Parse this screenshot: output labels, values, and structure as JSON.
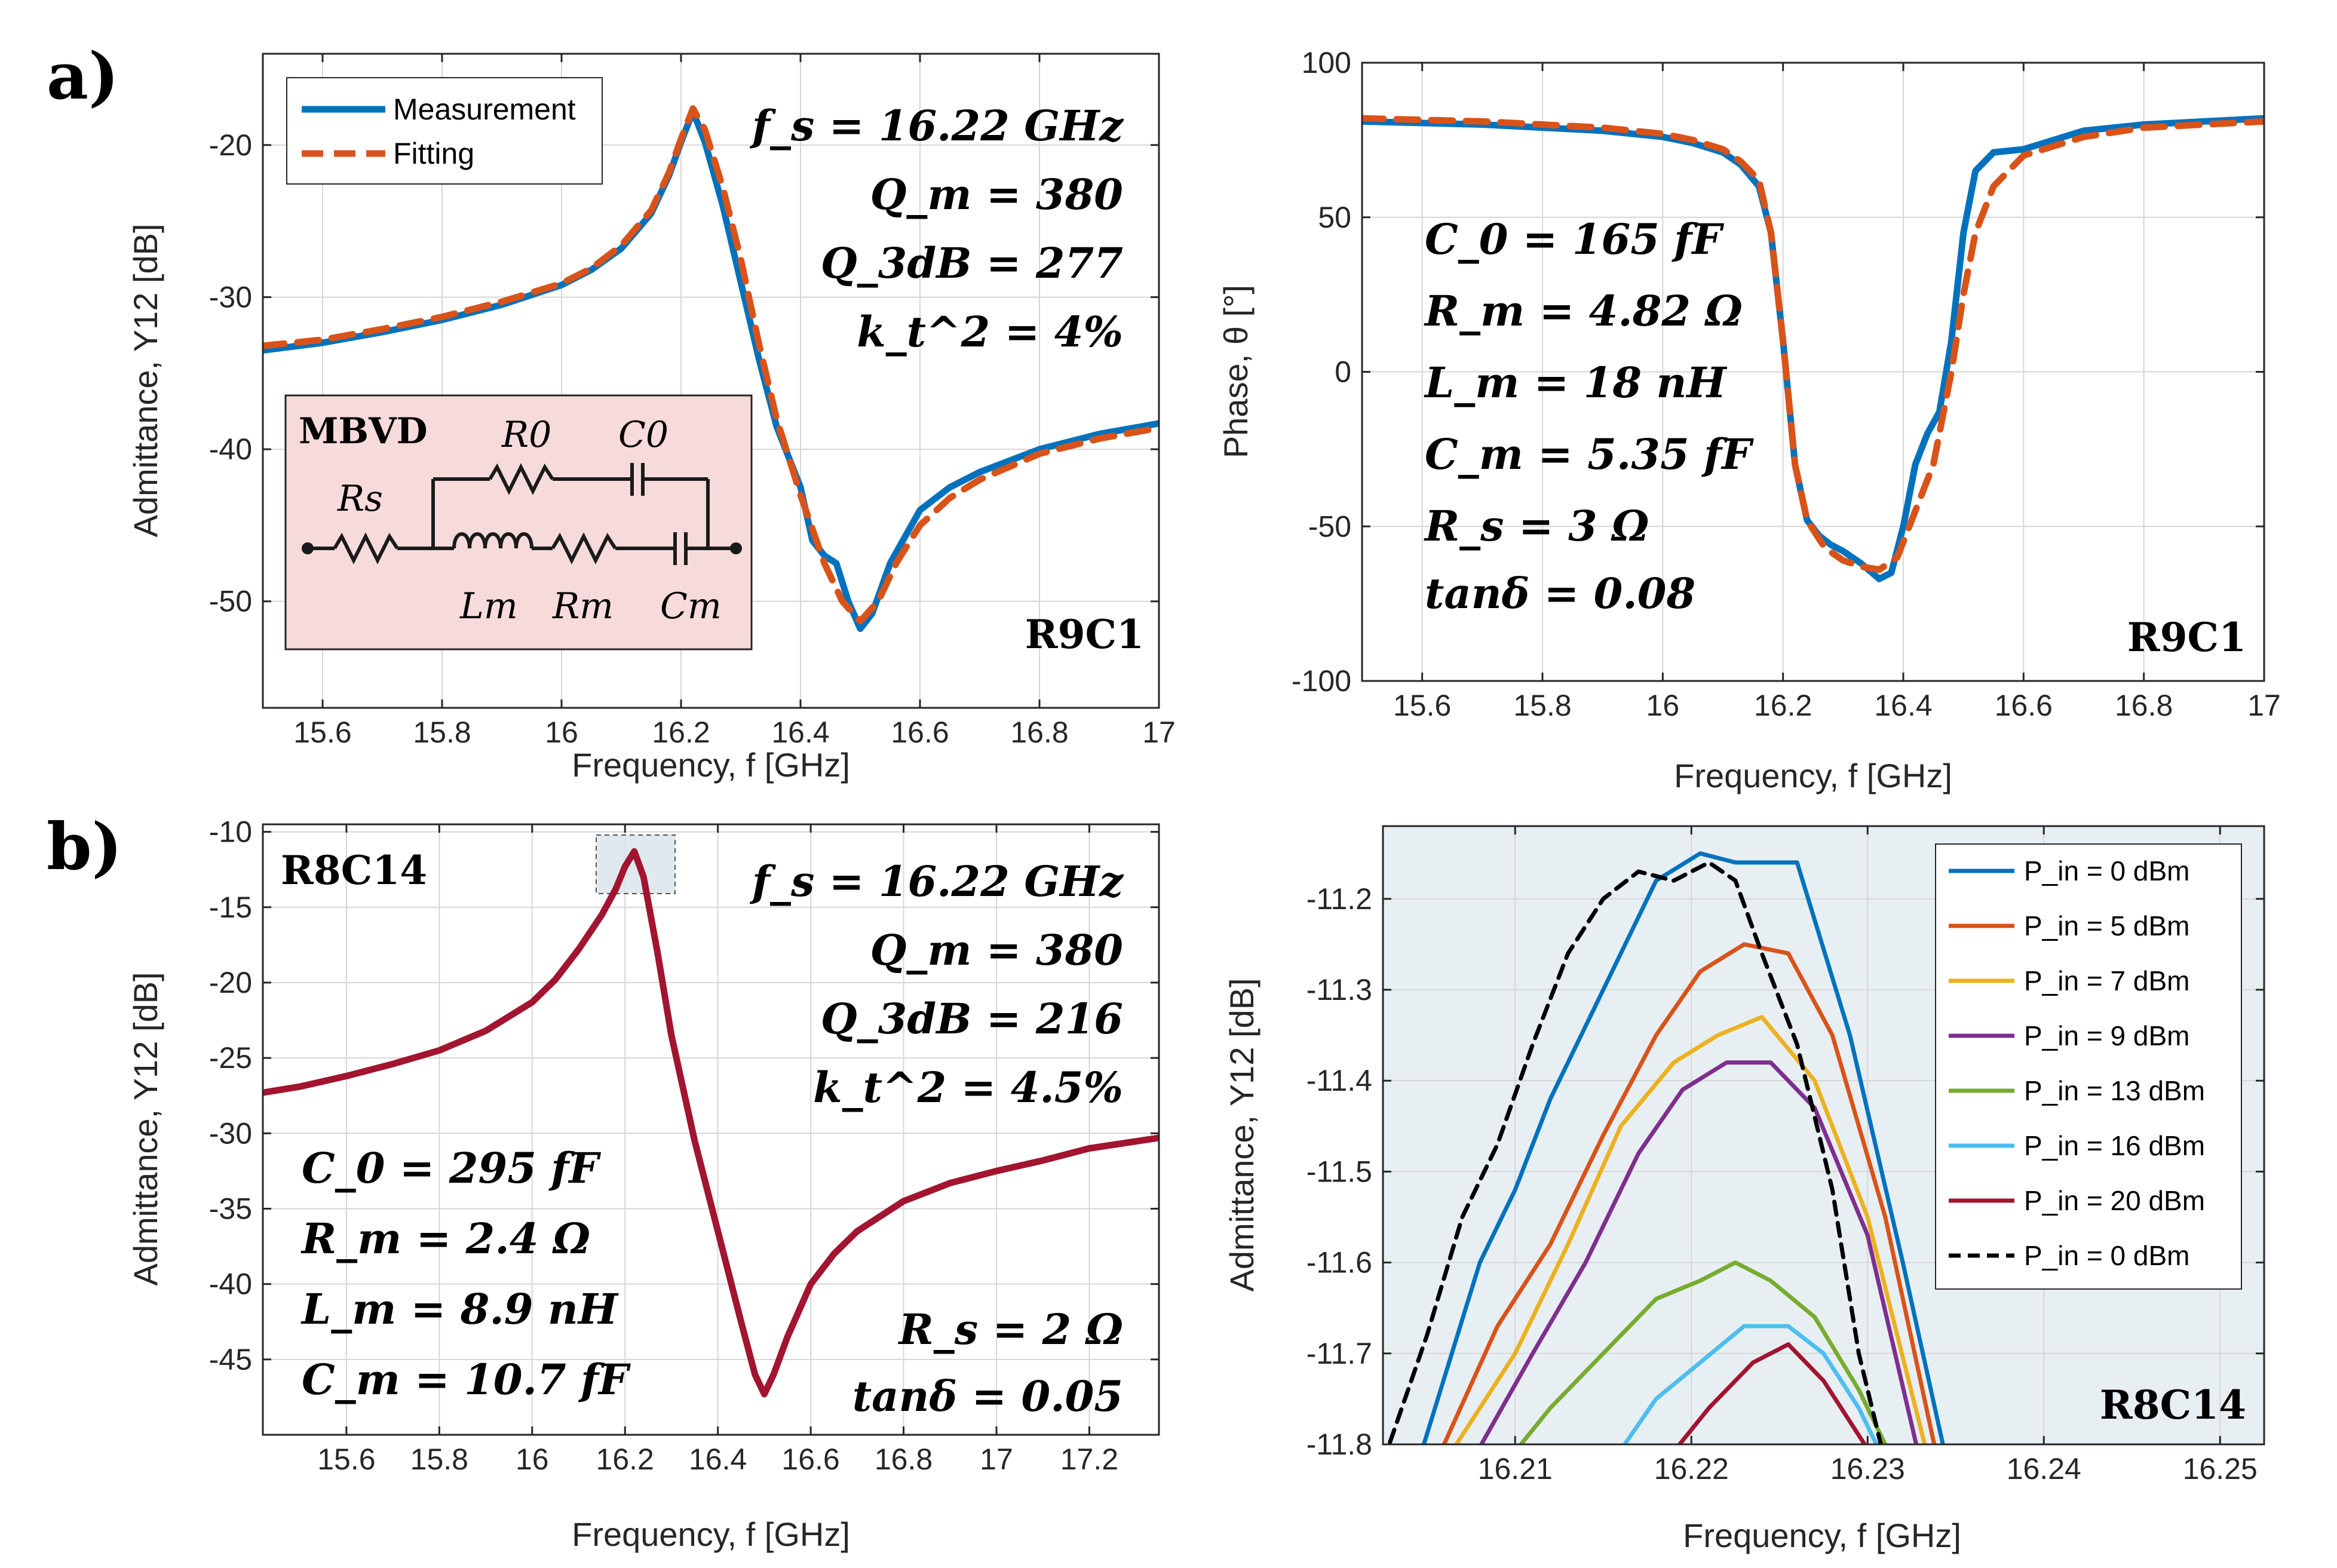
{
  "panels": {
    "a": "a)",
    "b": "b)"
  },
  "chart_data": [
    {
      "id": "a-left",
      "type": "line",
      "xlabel": "Frequency, f [GHz]",
      "ylabel": "Admittance, Y12 [dB]",
      "xlim": [
        15.5,
        17
      ],
      "ylim": [
        -57,
        -14
      ],
      "xticks": [
        15.6,
        15.8,
        16,
        16.2,
        16.4,
        16.6,
        16.8,
        17
      ],
      "yticks": [
        -20,
        -30,
        -40,
        -50
      ],
      "grid": true,
      "legend_position": "top-left",
      "series": [
        {
          "name": "Measurement",
          "color": "#0072BD",
          "dash": "solid",
          "x": [
            15.5,
            15.6,
            15.7,
            15.8,
            15.9,
            16.0,
            16.05,
            16.1,
            16.15,
            16.18,
            16.2,
            16.22,
            16.24,
            16.27,
            16.3,
            16.33,
            16.36,
            16.4,
            16.42,
            16.44,
            16.46,
            16.48,
            16.5,
            16.52,
            16.55,
            16.6,
            16.65,
            16.7,
            16.8,
            16.9,
            17.0
          ],
          "y": [
            -33.5,
            -33.0,
            -32.3,
            -31.5,
            -30.5,
            -29.2,
            -28.2,
            -26.8,
            -24.5,
            -22.0,
            -19.8,
            -17.8,
            -19.8,
            -24.0,
            -29.0,
            -34.0,
            -38.5,
            -42.5,
            -46.0,
            -47.0,
            -47.5,
            -50.0,
            -51.8,
            -50.8,
            -47.5,
            -44.0,
            -42.5,
            -41.5,
            -40.0,
            -39.0,
            -38.3
          ]
        },
        {
          "name": "Fitting",
          "color": "#D95319",
          "dash": "dashed",
          "x": [
            15.5,
            15.6,
            15.7,
            15.8,
            15.9,
            16.0,
            16.05,
            16.1,
            16.15,
            16.18,
            16.2,
            16.22,
            16.24,
            16.27,
            16.3,
            16.33,
            16.36,
            16.4,
            16.44,
            16.47,
            16.5,
            16.53,
            16.56,
            16.6,
            16.65,
            16.7,
            16.8,
            16.9,
            17.0
          ],
          "y": [
            -33.2,
            -32.8,
            -32.1,
            -31.3,
            -30.3,
            -29.1,
            -28.1,
            -26.6,
            -24.3,
            -21.8,
            -19.6,
            -17.6,
            -19.0,
            -22.8,
            -27.5,
            -33.0,
            -38.0,
            -43.0,
            -47.5,
            -50.0,
            -51.3,
            -50.0,
            -47.5,
            -45.0,
            -43.2,
            -42.0,
            -40.3,
            -39.3,
            -38.6
          ]
        }
      ],
      "annotations": {
        "params": [
          "f_s = 16.22 GHz",
          "Q_m = 380",
          "Q_3dB = 277",
          "k_t^2 = 4%"
        ],
        "tag": "R9C1",
        "inset": {
          "title": "MBVD",
          "labels": [
            "R0",
            "C0",
            "Rs",
            "Lm",
            "Rm",
            "Cm"
          ]
        }
      }
    },
    {
      "id": "a-right",
      "type": "line",
      "xlabel": "Frequency, f [GHz]",
      "ylabel": "Phase, θ [°]",
      "xlim": [
        15.5,
        17
      ],
      "ylim": [
        -100,
        100
      ],
      "xticks": [
        15.6,
        15.8,
        16,
        16.2,
        16.4,
        16.6,
        16.8,
        17
      ],
      "yticks": [
        100,
        50,
        0,
        -50,
        -100
      ],
      "grid": true,
      "series": [
        {
          "name": "Measurement",
          "color": "#0072BD",
          "dash": "solid",
          "x": [
            15.5,
            15.7,
            15.9,
            16.0,
            16.05,
            16.1,
            16.13,
            16.16,
            16.18,
            16.2,
            16.22,
            16.24,
            16.26,
            16.28,
            16.3,
            16.33,
            16.36,
            16.38,
            16.4,
            16.42,
            16.44,
            16.46,
            16.48,
            16.5,
            16.52,
            16.55,
            16.6,
            16.7,
            16.8,
            17.0
          ],
          "y": [
            81,
            80,
            78,
            76,
            74,
            71,
            67,
            60,
            45,
            10,
            -30,
            -48,
            -53,
            -56,
            -58,
            -62,
            -67,
            -65,
            -50,
            -30,
            -20,
            -13,
            10,
            45,
            65,
            71,
            72,
            78,
            80,
            82
          ]
        },
        {
          "name": "Fitting",
          "color": "#D95319",
          "dash": "dashed",
          "x": [
            15.5,
            15.7,
            15.9,
            16.0,
            16.05,
            16.1,
            16.13,
            16.16,
            16.18,
            16.2,
            16.22,
            16.24,
            16.27,
            16.3,
            16.33,
            16.36,
            16.39,
            16.42,
            16.45,
            16.48,
            16.5,
            16.52,
            16.55,
            16.6,
            16.7,
            16.8,
            17.0
          ],
          "y": [
            82,
            81,
            79,
            77,
            75,
            72,
            68,
            62,
            45,
            10,
            -30,
            -48,
            -57,
            -61,
            -63,
            -64,
            -60,
            -45,
            -30,
            0,
            25,
            45,
            60,
            70,
            76,
            79,
            81
          ]
        }
      ],
      "annotations": {
        "params": [
          "C_0 = 165 fF",
          "R_m = 4.82 Ω",
          "L_m = 18 nH",
          "C_m = 5.35 fF",
          "R_s = 3 Ω",
          "tanδ = 0.08"
        ],
        "tag": "R9C1"
      }
    },
    {
      "id": "b-left",
      "type": "line",
      "xlabel": "Frequency, f [GHz]",
      "ylabel": "Admittance, Y12 [dB]",
      "xlim": [
        15.42,
        17.35
      ],
      "ylim": [
        -50,
        -9.5
      ],
      "xticks": [
        15.6,
        15.8,
        16,
        16.2,
        16.4,
        16.6,
        16.8,
        17,
        17.2
      ],
      "yticks": [
        -10,
        -15,
        -20,
        -25,
        -30,
        -35,
        -40,
        -45
      ],
      "grid": true,
      "series": [
        {
          "name": "",
          "color": "#A2142F",
          "dash": "solid",
          "x": [
            15.42,
            15.5,
            15.6,
            15.7,
            15.8,
            15.9,
            16.0,
            16.05,
            16.1,
            16.15,
            16.18,
            16.2,
            16.22,
            16.24,
            16.27,
            16.3,
            16.35,
            16.4,
            16.45,
            16.48,
            16.5,
            16.52,
            16.55,
            16.6,
            16.65,
            16.7,
            16.8,
            16.9,
            17.0,
            17.1,
            17.2,
            17.35
          ],
          "y": [
            -27.3,
            -26.9,
            -26.2,
            -25.4,
            -24.5,
            -23.2,
            -21.3,
            -19.8,
            -17.8,
            -15.5,
            -13.8,
            -12.3,
            -11.3,
            -13.0,
            -18.0,
            -23.5,
            -30.5,
            -36.5,
            -42.5,
            -46.0,
            -47.3,
            -46.0,
            -43.5,
            -40.0,
            -38.0,
            -36.5,
            -34.5,
            -33.3,
            -32.5,
            -31.8,
            -31.0,
            -30.3
          ]
        }
      ],
      "annotations": {
        "params": [
          "f_s = 16.22 GHz",
          "Q_m = 380",
          "Q_3dB = 216",
          "k_t^2 = 4.5%",
          "C_0 = 295 fF",
          "R_m = 2.4 Ω",
          "L_m = 8.9 nH",
          "C_m = 10.7 fF",
          "R_s = 2 Ω",
          "tanδ = 0.05"
        ],
        "tag": "R8C14"
      }
    },
    {
      "id": "b-right",
      "type": "line",
      "xlabel": "Frequency, f [GHz]",
      "ylabel": "Admittance, Y12 [dB]",
      "xlim": [
        16.2025,
        16.2525
      ],
      "ylim": [
        -11.8,
        -11.12
      ],
      "xticks": [
        16.21,
        16.22,
        16.23,
        16.24,
        16.25
      ],
      "yticks": [
        -11.2,
        -11.3,
        -11.4,
        -11.5,
        -11.6,
        -11.7,
        -11.8
      ],
      "grid": true,
      "legend_position": "top-right",
      "series": [
        {
          "name": "P_in = 0 dBm",
          "color": "#0072BD",
          "dash": "solid",
          "x": [
            16.2045,
            16.208,
            16.21,
            16.212,
            16.215,
            16.218,
            16.2205,
            16.2225,
            16.226,
            16.229,
            16.232,
            16.2345
          ],
          "y": [
            -11.82,
            -11.6,
            -11.52,
            -11.42,
            -11.3,
            -11.18,
            -11.15,
            -11.16,
            -11.16,
            -11.35,
            -11.6,
            -11.82
          ]
        },
        {
          "name": "P_in = 5 dBm",
          "color": "#D95319",
          "dash": "solid",
          "x": [
            16.2055,
            16.209,
            16.212,
            16.215,
            16.218,
            16.2205,
            16.223,
            16.2255,
            16.228,
            16.231,
            16.234
          ],
          "y": [
            -11.82,
            -11.67,
            -11.58,
            -11.46,
            -11.35,
            -11.28,
            -11.25,
            -11.26,
            -11.35,
            -11.55,
            -11.82
          ]
        },
        {
          "name": "P_in = 7 dBm",
          "color": "#EDB120",
          "dash": "solid",
          "x": [
            16.206,
            16.21,
            16.213,
            16.216,
            16.219,
            16.2215,
            16.224,
            16.227,
            16.23,
            16.2335
          ],
          "y": [
            -11.82,
            -11.7,
            -11.58,
            -11.45,
            -11.38,
            -11.35,
            -11.33,
            -11.4,
            -11.55,
            -11.82
          ]
        },
        {
          "name": "P_in = 9 dBm",
          "color": "#7E2F8E",
          "dash": "solid",
          "x": [
            16.2075,
            16.211,
            16.214,
            16.217,
            16.2195,
            16.222,
            16.2245,
            16.227,
            16.23,
            16.233
          ],
          "y": [
            -11.82,
            -11.7,
            -11.6,
            -11.48,
            -11.41,
            -11.38,
            -11.38,
            -11.43,
            -11.57,
            -11.82
          ]
        },
        {
          "name": "P_in = 13 dBm",
          "color": "#77AC30",
          "dash": "solid",
          "x": [
            16.2095,
            16.212,
            16.215,
            16.218,
            16.2205,
            16.2225,
            16.2245,
            16.227,
            16.2295,
            16.2315
          ],
          "y": [
            -11.82,
            -11.76,
            -11.7,
            -11.64,
            -11.62,
            -11.6,
            -11.62,
            -11.66,
            -11.74,
            -11.82
          ]
        },
        {
          "name": "P_in = 16 dBm",
          "color": "#4DBEEE",
          "dash": "solid",
          "x": [
            16.2155,
            16.218,
            16.2205,
            16.223,
            16.2255,
            16.2275,
            16.2295,
            16.231
          ],
          "y": [
            -11.82,
            -11.75,
            -11.71,
            -11.67,
            -11.67,
            -11.7,
            -11.76,
            -11.82
          ]
        },
        {
          "name": "P_in = 20 dBm",
          "color": "#A2142F",
          "dash": "solid",
          "x": [
            16.2185,
            16.221,
            16.2235,
            16.2255,
            16.2275,
            16.2295,
            16.2305
          ],
          "y": [
            -11.82,
            -11.76,
            -11.71,
            -11.69,
            -11.73,
            -11.79,
            -11.82
          ]
        },
        {
          "name": "P_in = 0 dBm",
          "color": "#000000",
          "dash": "dashed",
          "x": [
            16.2025,
            16.205,
            16.207,
            16.209,
            16.211,
            16.213,
            16.215,
            16.217,
            16.219,
            16.221,
            16.2225,
            16.224,
            16.226,
            16.228,
            16.2295,
            16.231
          ],
          "y": [
            -11.82,
            -11.68,
            -11.55,
            -11.47,
            -11.36,
            -11.26,
            -11.2,
            -11.17,
            -11.18,
            -11.16,
            -11.18,
            -11.26,
            -11.36,
            -11.52,
            -11.7,
            -11.82
          ]
        }
      ],
      "annotations": {
        "tag": "R8C14"
      }
    }
  ]
}
